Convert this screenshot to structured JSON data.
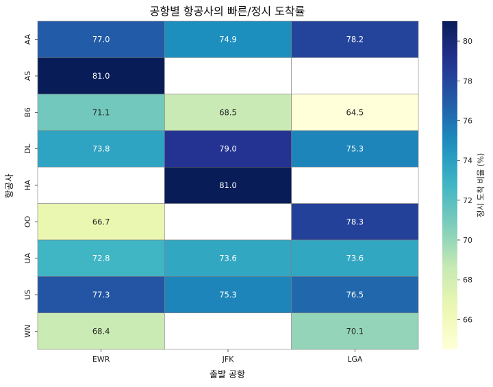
{
  "chart_data": {
    "type": "heatmap",
    "title": "공항별 항공사의 빠른/정시 도착률",
    "xlabel": "출발 공항",
    "ylabel": "항공사",
    "x_categories": [
      "EWR",
      "JFK",
      "LGA"
    ],
    "y_categories": [
      "AA",
      "AS",
      "B6",
      "DL",
      "HA",
      "OO",
      "UA",
      "US",
      "WN"
    ],
    "values": [
      [
        77.0,
        74.9,
        78.2
      ],
      [
        81.0,
        null,
        null
      ],
      [
        71.1,
        68.5,
        64.5
      ],
      [
        73.8,
        79.0,
        75.3
      ],
      [
        null,
        81.0,
        null
      ],
      [
        66.7,
        null,
        78.3
      ],
      [
        72.8,
        73.6,
        73.6
      ],
      [
        77.3,
        75.3,
        76.5
      ],
      [
        68.4,
        null,
        70.1
      ]
    ],
    "value_labels": [
      [
        "77.0",
        "74.9",
        "78.2"
      ],
      [
        "81.0",
        "",
        ""
      ],
      [
        "71.1",
        "68.5",
        "64.5"
      ],
      [
        "73.8",
        "79.0",
        "75.3"
      ],
      [
        "",
        "81.0",
        ""
      ],
      [
        "66.7",
        "",
        "78.3"
      ],
      [
        "72.8",
        "73.6",
        "73.6"
      ],
      [
        "77.3",
        "75.3",
        "76.5"
      ],
      [
        "68.4",
        "",
        "70.1"
      ]
    ],
    "colormap": "YlGnBu",
    "vmin": 64.5,
    "vmax": 81.0,
    "colorbar": {
      "label": "정시 도착 비율 (%)",
      "ticks": [
        66,
        68,
        70,
        72,
        74,
        76,
        78,
        80
      ],
      "tick_labels": [
        "66",
        "68",
        "70",
        "72",
        "74",
        "76",
        "78",
        "80"
      ]
    },
    "missing_color": "#ffffff",
    "cell_border_color": "#808080"
  }
}
